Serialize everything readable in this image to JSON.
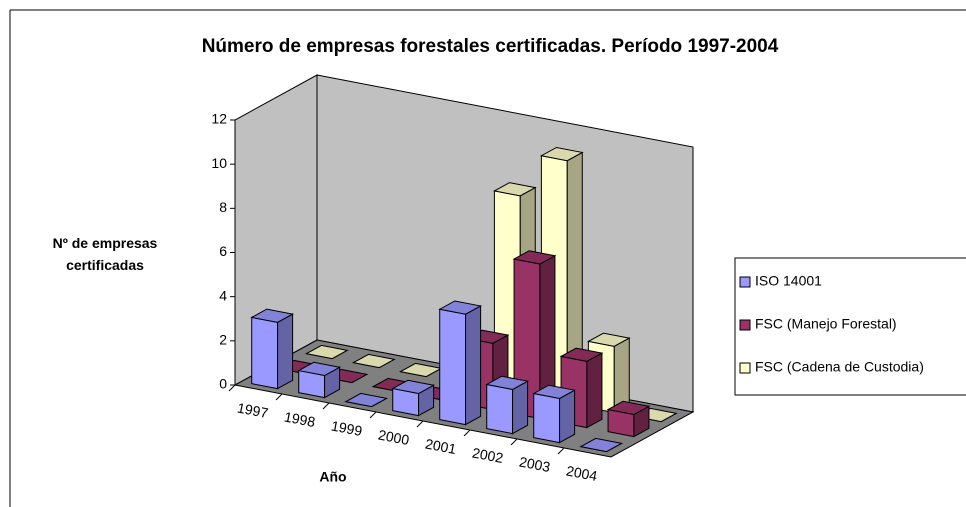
{
  "chart_data": {
    "type": "bar3d",
    "title": "Número de empresas forestales certificadas. Período 1997-2004",
    "x_label": "Año",
    "y_label": "Nº de empresas certificadas",
    "categories": [
      "1997",
      "1998",
      "1999",
      "2000",
      "2001",
      "2002",
      "2003",
      "2004"
    ],
    "series": [
      {
        "name": "ISO 14001",
        "color": "#9999ff",
        "values": [
          3,
          1,
          0,
          1,
          5,
          2,
          2,
          0
        ]
      },
      {
        "name": "FSC (Manejo Forestal)",
        "color": "#993366",
        "values": [
          0,
          0,
          0,
          0,
          3,
          7,
          3,
          1
        ]
      },
      {
        "name": "FSC (Cadena de Custodia)",
        "color": "#ffffcc",
        "values": [
          0,
          0,
          0,
          0,
          9,
          11,
          3,
          0
        ]
      }
    ],
    "ylim": [
      0,
      12
    ],
    "yticks": [
      0,
      2,
      4,
      6,
      8,
      10,
      12
    ],
    "legend": "right"
  }
}
